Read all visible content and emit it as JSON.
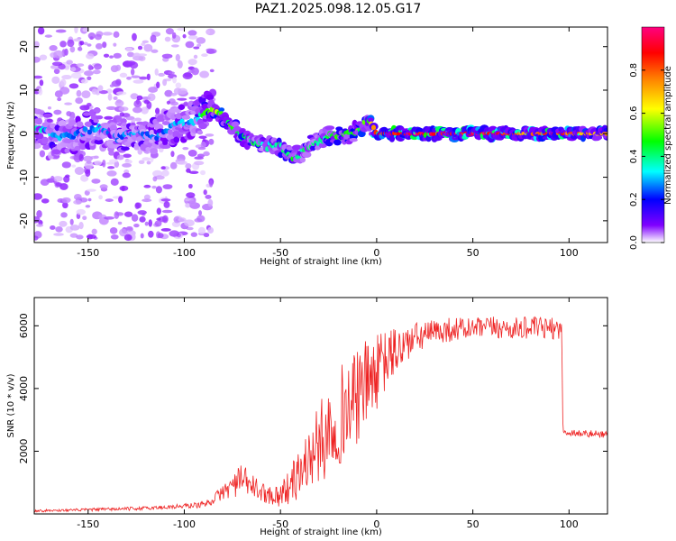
{
  "title": "PAZ1.2025.098.12.05.G17",
  "chart_data": [
    {
      "type": "heatmap",
      "xlabel": "Height of straight line (km)",
      "ylabel": "Frequency (Hz)",
      "xlim": [
        -178,
        120
      ],
      "ylim": [
        -25,
        24.5
      ],
      "x_ticks": [
        -150,
        -100,
        -50,
        0,
        50,
        100
      ],
      "x_tick_labels": [
        "-150",
        "-100",
        "-50",
        "0",
        "50",
        "100"
      ],
      "y_ticks": [
        -20,
        -10,
        0,
        10,
        20
      ],
      "y_tick_labels": [
        "-20",
        "-10",
        "0",
        "10",
        "20"
      ],
      "colorbar": {
        "label": "Normalized spectral amplitude",
        "range": [
          0,
          1
        ],
        "ticks": [
          0,
          0.2,
          0.4,
          0.6,
          0.8
        ],
        "tick_labels": [
          "0.0",
          "0.2",
          "0.4",
          "0.6",
          "0.8"
        ],
        "colormap": [
          "#ffffff",
          "#8000ff",
          "#0000ff",
          "#00ffff",
          "#00ff00",
          "#ffff00",
          "#ff8000",
          "#ff0000",
          "#ff0080"
        ]
      },
      "ridge": [
        {
          "x": -175,
          "f": 1.5,
          "a": 0.4
        },
        {
          "x": -165,
          "f": -1.0,
          "a": 0.35
        },
        {
          "x": -155,
          "f": 0.0,
          "a": 0.3
        },
        {
          "x": -145,
          "f": 1.5,
          "a": 0.35
        },
        {
          "x": -135,
          "f": -1.0,
          "a": 0.3
        },
        {
          "x": -125,
          "f": 0.5,
          "a": 0.35
        },
        {
          "x": -115,
          "f": -1.0,
          "a": 0.3
        },
        {
          "x": -105,
          "f": 2.0,
          "a": 0.35
        },
        {
          "x": -95,
          "f": 3.0,
          "a": 0.35
        },
        {
          "x": -88,
          "f": 5.5,
          "a": 0.55
        },
        {
          "x": -83,
          "f": 5.0,
          "a": 0.6
        },
        {
          "x": -78,
          "f": 3.0,
          "a": 0.5
        },
        {
          "x": -72,
          "f": 0.0,
          "a": 0.5
        },
        {
          "x": -67,
          "f": -1.5,
          "a": 0.5
        },
        {
          "x": -62,
          "f": -2.0,
          "a": 0.45
        },
        {
          "x": -57,
          "f": -3.0,
          "a": 0.4
        },
        {
          "x": -52,
          "f": -2.5,
          "a": 0.45
        },
        {
          "x": -47,
          "f": -4.0,
          "a": 0.45
        },
        {
          "x": -43,
          "f": -5.5,
          "a": 0.5
        },
        {
          "x": -38,
          "f": -4.0,
          "a": 0.45
        },
        {
          "x": -33,
          "f": -2.0,
          "a": 0.45
        },
        {
          "x": -28,
          "f": -1.5,
          "a": 0.45
        },
        {
          "x": -23,
          "f": 0.0,
          "a": 0.5
        },
        {
          "x": -18,
          "f": -0.5,
          "a": 0.55
        },
        {
          "x": -13,
          "f": 0.0,
          "a": 0.5
        },
        {
          "x": -8,
          "f": 1.5,
          "a": 0.55
        },
        {
          "x": -5,
          "f": 3.0,
          "a": 0.5
        },
        {
          "x": 0,
          "f": 0.0,
          "a": 0.9
        },
        {
          "x": 10,
          "f": 0.0,
          "a": 0.95
        },
        {
          "x": 20,
          "f": 0.0,
          "a": 0.95
        },
        {
          "x": 30,
          "f": 0.0,
          "a": 0.95
        },
        {
          "x": 40,
          "f": 0.0,
          "a": 0.9
        },
        {
          "x": 50,
          "f": 0.0,
          "a": 0.95
        },
        {
          "x": 60,
          "f": 0.0,
          "a": 0.95
        },
        {
          "x": 70,
          "f": 0.0,
          "a": 0.85
        },
        {
          "x": 80,
          "f": 0.0,
          "a": 0.8
        },
        {
          "x": 90,
          "f": 0.0,
          "a": 0.9
        },
        {
          "x": 100,
          "f": 0.0,
          "a": 0.85
        },
        {
          "x": 110,
          "f": 0.0,
          "a": 0.75
        },
        {
          "x": 120,
          "f": 0.0,
          "a": 0.75
        }
      ]
    },
    {
      "type": "line",
      "xlabel": "Height of straight line (km)",
      "ylabel": "SNR (10 * v/v)",
      "xlim": [
        -178,
        120
      ],
      "ylim": [
        0,
        6900
      ],
      "x_ticks": [
        -150,
        -100,
        -50,
        0,
        50,
        100
      ],
      "x_tick_labels": [
        "-150",
        "-100",
        "-50",
        "0",
        "50",
        "100"
      ],
      "y_ticks": [
        2000,
        4000,
        6000
      ],
      "y_tick_labels": [
        "2000",
        "4000",
        "6000"
      ],
      "line_color": "#ee2222",
      "series": [
        {
          "x": [
            -178,
            -160,
            -140,
            -120,
            -100,
            -90,
            -85,
            -80,
            -75,
            -70,
            -65,
            -60,
            -55,
            -50,
            -45,
            -40,
            -35,
            -30,
            -25,
            -20,
            -15,
            -10,
            -5,
            0,
            5,
            10,
            20,
            30,
            40,
            50,
            60,
            70,
            80,
            90,
            96,
            97,
            100,
            110,
            120
          ],
          "y": [
            100,
            120,
            150,
            180,
            250,
            300,
            450,
            700,
            900,
            1100,
            900,
            700,
            600,
            600,
            900,
            1300,
            1800,
            2200,
            2700,
            3100,
            3400,
            3700,
            4200,
            4500,
            4900,
            5200,
            5600,
            5800,
            5900,
            5900,
            5950,
            5900,
            5950,
            5900,
            5950,
            2600,
            2600,
            2550,
            2550
          ],
          "amplitude": [
            40,
            40,
            50,
            60,
            80,
            100,
            150,
            250,
            400,
            500,
            400,
            300,
            300,
            400,
            600,
            800,
            1000,
            1300,
            1500,
            1600,
            1600,
            1500,
            1400,
            1200,
            1000,
            800,
            500,
            400,
            400,
            350,
            350,
            350,
            350,
            350,
            350,
            150,
            120,
            120,
            120
          ]
        }
      ]
    }
  ]
}
